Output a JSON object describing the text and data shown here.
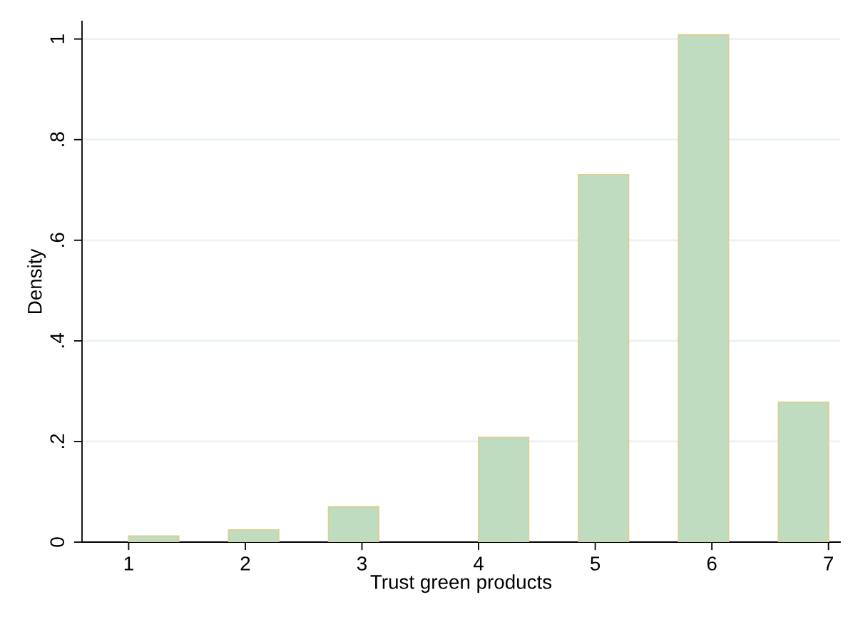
{
  "chart_data": {
    "type": "histogram",
    "xlabel": "Trust green products",
    "ylabel": "Density",
    "bins": [
      1,
      1.4286,
      1.8571,
      2.2857,
      2.7143,
      3.1429,
      3.5714,
      4,
      4.4286,
      4.8571,
      5.2857,
      5.7143,
      6.1429,
      6.5714,
      7
    ],
    "values": [
      0.012,
      0,
      0.024,
      0,
      0.07,
      0,
      0,
      0.208,
      0,
      0.73,
      0,
      1.008,
      0,
      0.278
    ],
    "color": "#c0dcc0",
    "xlim": [
      0.6,
      7.1
    ],
    "xticks": [
      1,
      2,
      3,
      4,
      5,
      6,
      7
    ],
    "ylim": [
      0,
      1.035
    ],
    "yticks": [
      0,
      {
        "value": 0.2,
        "label": ".2"
      },
      {
        "value": 0.4,
        "label": ".4"
      },
      {
        "value": 0.6,
        "label": ".6"
      },
      {
        "value": 0.8,
        "label": ".8"
      },
      1
    ],
    "grid": "y"
  }
}
